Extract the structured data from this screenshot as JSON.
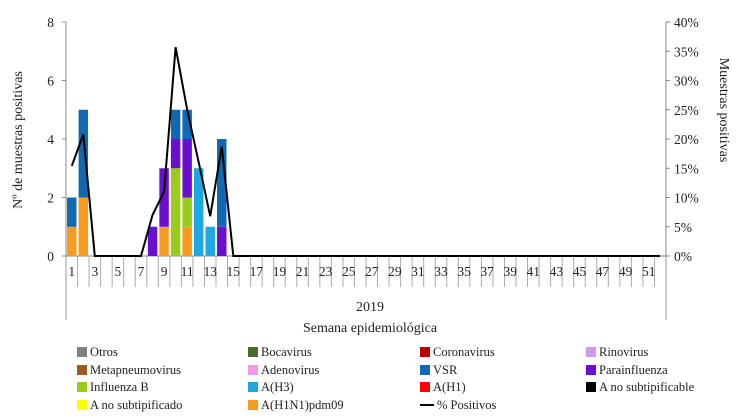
{
  "chart_data": {
    "type": "bar",
    "stacked": true,
    "year_label": "2019",
    "xlabel": "Semana epidemiológica",
    "ylabel": "Nº de muestras positivas",
    "y2label": "Muestras positivas",
    "ylim": [
      0,
      8
    ],
    "y2lim": [
      0,
      40
    ],
    "yticks": [
      0,
      2,
      4,
      6,
      8
    ],
    "y2ticks": [
      "0%",
      "5%",
      "10%",
      "15%",
      "20%",
      "25%",
      "30%",
      "35%",
      "40%"
    ],
    "weeks": [
      1,
      2,
      3,
      4,
      5,
      6,
      7,
      8,
      9,
      10,
      11,
      12,
      13,
      14,
      15,
      16,
      17,
      18,
      19,
      20,
      21,
      22,
      23,
      24,
      25,
      26,
      27,
      28,
      29,
      30,
      31,
      32,
      33,
      34,
      35,
      36,
      37,
      38,
      39,
      40,
      41,
      42,
      43,
      44,
      45,
      46,
      47,
      48,
      49,
      50,
      51,
      52
    ],
    "series": [
      {
        "name": "A(H1N1)pdm09",
        "color": "#f79b1e",
        "values": [
          1,
          2,
          0,
          0,
          0,
          0,
          0,
          0,
          1,
          0,
          1,
          0,
          0,
          0,
          0,
          0,
          0,
          0,
          0,
          0,
          0,
          0,
          0,
          0,
          0,
          0,
          0,
          0,
          0,
          0,
          0,
          0,
          0,
          0,
          0,
          0,
          0,
          0,
          0,
          0,
          0,
          0,
          0,
          0,
          0,
          0,
          0,
          0,
          0,
          0,
          0,
          0
        ]
      },
      {
        "name": "Influenza  B",
        "color": "#99cc1b",
        "values": [
          0,
          0,
          0,
          0,
          0,
          0,
          0,
          0,
          0,
          3,
          1,
          0,
          0,
          0,
          0,
          0,
          0,
          0,
          0,
          0,
          0,
          0,
          0,
          0,
          0,
          0,
          0,
          0,
          0,
          0,
          0,
          0,
          0,
          0,
          0,
          0,
          0,
          0,
          0,
          0,
          0,
          0,
          0,
          0,
          0,
          0,
          0,
          0,
          0,
          0,
          0,
          0
        ]
      },
      {
        "name": "Parainfluenza",
        "color": "#6a0fcf",
        "values": [
          0,
          0,
          0,
          0,
          0,
          0,
          0,
          1,
          2,
          1,
          2,
          0,
          0,
          1,
          0,
          0,
          0,
          0,
          0,
          0,
          0,
          0,
          0,
          0,
          0,
          0,
          0,
          0,
          0,
          0,
          0,
          0,
          0,
          0,
          0,
          0,
          0,
          0,
          0,
          0,
          0,
          0,
          0,
          0,
          0,
          0,
          0,
          0,
          0,
          0,
          0,
          0
        ]
      },
      {
        "name": "A(H3)",
        "color": "#1fa8e0",
        "values": [
          0,
          0,
          0,
          0,
          0,
          0,
          0,
          0,
          0,
          0,
          0,
          3,
          1,
          0,
          0,
          0,
          0,
          0,
          0,
          0,
          0,
          0,
          0,
          0,
          0,
          0,
          0,
          0,
          0,
          0,
          0,
          0,
          0,
          0,
          0,
          0,
          0,
          0,
          0,
          0,
          0,
          0,
          0,
          0,
          0,
          0,
          0,
          0,
          0,
          0,
          0,
          0
        ]
      },
      {
        "name": "VSR",
        "color": "#1269b3",
        "values": [
          1,
          3,
          0,
          0,
          0,
          0,
          0,
          0,
          0,
          1,
          1,
          0,
          0,
          3,
          0,
          0,
          0,
          0,
          0,
          0,
          0,
          0,
          0,
          0,
          0,
          0,
          0,
          0,
          0,
          0,
          0,
          0,
          0,
          0,
          0,
          0,
          0,
          0,
          0,
          0,
          0,
          0,
          0,
          0,
          0,
          0,
          0,
          0,
          0,
          0,
          0,
          0
        ]
      }
    ],
    "line": {
      "name": "% Positivos",
      "color": "#000000",
      "values": [
        15.4,
        20.8,
        0,
        0,
        0,
        0,
        0,
        7,
        11,
        35.7,
        25,
        16,
        6.8,
        18.7,
        0,
        0,
        0,
        0,
        0,
        0,
        0,
        0,
        0,
        0,
        0,
        0,
        0,
        0,
        0,
        0,
        0,
        0,
        0,
        0,
        0,
        0,
        0,
        0,
        0,
        0,
        0,
        0,
        0,
        0,
        0,
        0,
        0,
        0,
        0,
        0,
        0,
        0
      ]
    },
    "legend": [
      {
        "name": "Otros",
        "color": "#808080"
      },
      {
        "name": "Bocavirus",
        "color": "#4f6b2a"
      },
      {
        "name": "Coronavirus",
        "color": "#c00000"
      },
      {
        "name": "Rinovirus",
        "color": "#cc99ee"
      },
      {
        "name": "Metapneumovirus",
        "color": "#9c5a1c"
      },
      {
        "name": "Adenovirus",
        "color": "#f59be6"
      },
      {
        "name": "VSR",
        "color": "#1269b3"
      },
      {
        "name": "Parainfluenza",
        "color": "#6a0fcf"
      },
      {
        "name": "Influenza  B",
        "color": "#99cc1b"
      },
      {
        "name": "A(H3)",
        "color": "#1fa8e0"
      },
      {
        "name": "A(H1)",
        "color": "#ff0000"
      },
      {
        "name": "A no subtipificable",
        "color": "#000000"
      },
      {
        "name": "A no subtipificado",
        "color": "#ffff00"
      },
      {
        "name": "A(H1N1)pdm09",
        "color": "#f79b1e"
      },
      {
        "name": "% Positivos",
        "color": "#000000",
        "kind": "line"
      }
    ]
  }
}
